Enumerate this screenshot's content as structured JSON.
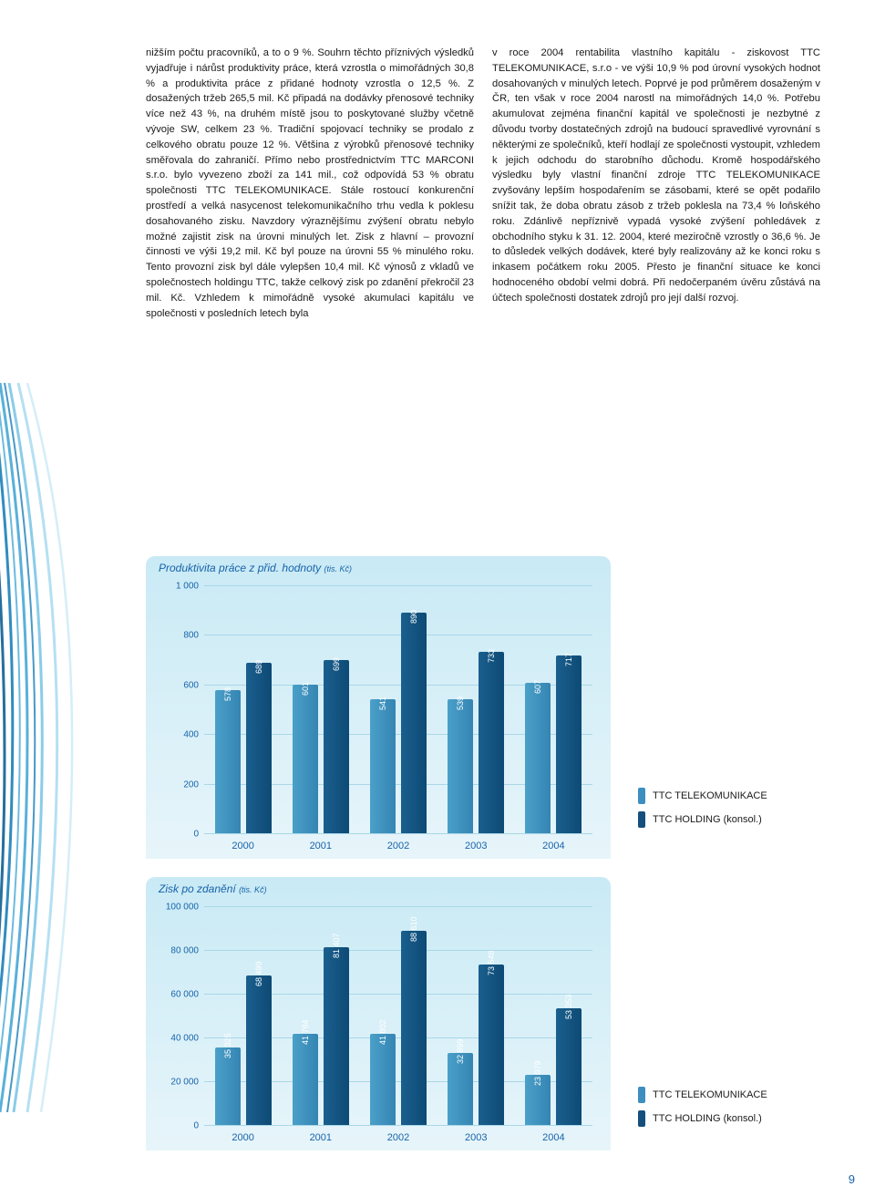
{
  "text_left": "nižším počtu pracovníků, a to o 9 %. Souhrn těchto příznivých výsledků vyjadřuje i nárůst produktivity práce, která vzrostla o mimořádných 30,8 % a produktivita práce z přidané hodnoty vzrostla o 12,5 %. Z dosažených tržeb 265,5 mil. Kč připadá na dodávky přenosové techniky více než 43 %, na druhém místě jsou to poskytované služby včetně vývoje SW, celkem 23 %. Tradiční spojovací techniky se prodalo z celkového obratu pouze 12 %. Většina z výrobků přenosové techniky směřovala do zahraničí. Přímo nebo prostřednictvím TTC MARCONI s.r.o. bylo vyvezeno zboží za 141 mil., což odpovídá 53 % obratu společnosti TTC TELEKOMUNIKACE. Stále rostoucí konkurenční prostředí a velká nasycenost telekomunikačního trhu vedla k poklesu dosahovaného zisku. Navzdory výraznějšímu zvýšení obratu nebylo možné zajistit zisk na úrovni minulých let. Zisk z hlavní – provozní činnosti ve výši 19,2 mil. Kč byl pouze na úrovni 55 % minulého roku. Tento provozní zisk byl dále vylepšen 10,4 mil. Kč výnosů z vkladů ve společnostech holdingu TTC, takže celkový zisk po zdanění překročil 23 mil. Kč. Vzhledem k mimořádně vysoké akumulaci kapitálu ve společnosti v posledních letech byla",
  "text_right": "v roce 2004 rentabilita vlastního kapitálu - ziskovost TTC TELEKOMUNIKACE, s.r.o - ve výši 10,9 % pod úrovní vysokých hodnot dosahovaných v minulých letech. Poprvé je pod průměrem dosaženým v ČR, ten však v roce 2004 narostl na mimořádných 14,0 %. Potřebu akumulovat zejména finanční kapitál ve společnosti je nezbytné z důvodu tvorby dostatečných zdrojů na budoucí spravedlivé vyrovnání s některými ze společníků, kteří hodlají ze společnosti vystoupit, vzhledem k jejich odchodu do starobního důchodu. Kromě hospodářského výsledku byly vlastní finanční zdroje TTC TELEKOMUNIKACE zvyšovány lepším hospodařením se zásobami, které se opět podařilo snížit tak, že doba obratu zásob z tržeb poklesla na 73,4 % loňského roku. Zdánlivě nepříznivě vypadá vysoké zvýšení pohledávek z obchodního styku k 31. 12. 2004, které meziročně vzrostly o 36,6 %. Je to důsledek velkých dodávek, které byly realizovány až ke konci roku s inkasem počátkem roku 2005. Přesto je finanční situace ke konci hodnoceného období velmi dobrá. Při nedočerpaném úvěru zůstává na účtech společnosti dostatek zdrojů pro její další rozvoj.",
  "chart1": {
    "type": "bar",
    "title": "Produktivita práce z přid. hodnoty",
    "unit": "(tis. Kč)",
    "ylim": [
      0,
      1000
    ],
    "ytick_step": 200,
    "categories": [
      "2000",
      "2001",
      "2002",
      "2003",
      "2004"
    ],
    "series": [
      {
        "name": "TTC TELEKOMUNIKACE",
        "color_class": "a",
        "values": [
          578,
          601,
          541,
          539,
          607
        ]
      },
      {
        "name": "TTC HOLDING (konsol.)",
        "color_class": "b",
        "values": [
          689,
          699,
          890,
          733,
          717
        ]
      }
    ]
  },
  "chart2": {
    "type": "bar",
    "title": "Zisk po zdanění",
    "unit": "(tis. Kč)",
    "ylim": [
      0,
      100000
    ],
    "ytick_step": 20000,
    "categories": [
      "2000",
      "2001",
      "2002",
      "2003",
      "2004"
    ],
    "series": [
      {
        "name": "TTC TELEKOMUNIKACE",
        "color_class": "a",
        "values": [
          35325,
          41784,
          41802,
          32899,
          23079
        ]
      },
      {
        "name": "TTC HOLDING (konsol.)",
        "color_class": "b",
        "values": [
          68499,
          81407,
          88610,
          73548,
          53353
        ]
      }
    ]
  },
  "legend": {
    "a": "TTC TELEKOMUNIKACE",
    "b": "TTC HOLDING (konsol.)"
  },
  "page_number": "9",
  "colors": {
    "bar_a": "#3c8fbf",
    "bar_b": "#154f7d",
    "grid": "#a9d7e8",
    "title": "#1763aa",
    "box_bg_top": "#c9eaf5",
    "box_bg_bot": "#e7f5fa"
  }
}
